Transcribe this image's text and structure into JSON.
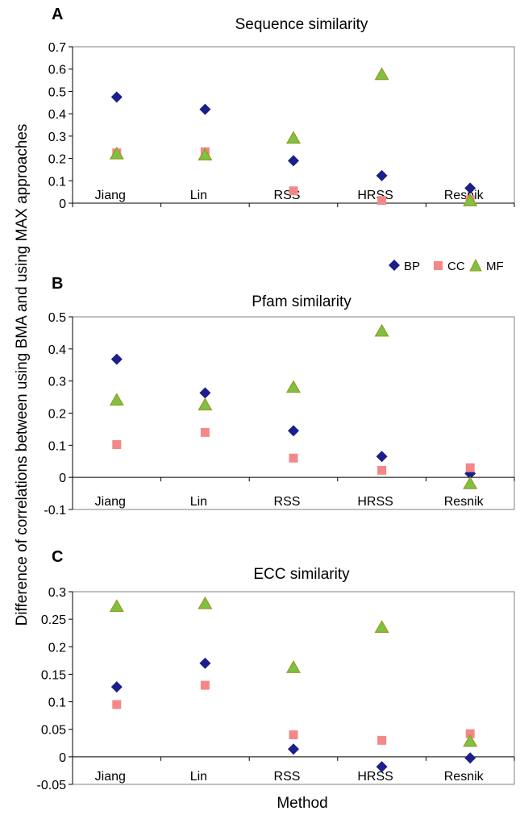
{
  "figure": {
    "ylabel": "Difference of correlations between using BMA and using MAX approaches",
    "xlabel": "Method"
  },
  "legend": {
    "entries": [
      {
        "name": "BP",
        "color": "#1a1f8a",
        "marker": "diamond"
      },
      {
        "name": "CC",
        "color": "#f48888",
        "marker": "square"
      },
      {
        "name": "MF",
        "color": "#7dc242",
        "marker": "triangle",
        "edge": "#9a9a20"
      }
    ]
  },
  "chart_data": [
    {
      "type": "scatter",
      "panel": "A",
      "title": "Sequence similarity",
      "categories": [
        "Jiang",
        "Lin",
        "RSS",
        "HRSS",
        "Resnik"
      ],
      "ylim": [
        0,
        0.7
      ],
      "yticks": [
        "0",
        "0.1",
        "0.2",
        "0.3",
        "0.4",
        "0.5",
        "0.6",
        "0.7"
      ],
      "ytick_values": [
        0,
        0.1,
        0.2,
        0.3,
        0.4,
        0.5,
        0.6,
        0.7
      ],
      "series": [
        {
          "name": "BP",
          "values": [
            0.475,
            0.42,
            0.19,
            0.123,
            0.067
          ]
        },
        {
          "name": "CC",
          "values": [
            0.225,
            0.23,
            0.055,
            0.012,
            0.015
          ]
        },
        {
          "name": "MF",
          "values": [
            0.22,
            0.215,
            0.29,
            0.575,
            0.01
          ]
        }
      ]
    },
    {
      "type": "scatter",
      "panel": "B",
      "title": "Pfam similarity",
      "categories": [
        "Jiang",
        "Lin",
        "RSS",
        "HRSS",
        "Resnik"
      ],
      "ylim": [
        -0.1,
        0.5
      ],
      "yticks": [
        "-0.1",
        "0",
        "0.1",
        "0.2",
        "0.3",
        "0.4",
        "0.5"
      ],
      "ytick_values": [
        -0.1,
        0,
        0.1,
        0.2,
        0.3,
        0.4,
        0.5
      ],
      "series": [
        {
          "name": "BP",
          "values": [
            0.368,
            0.263,
            0.145,
            0.065,
            0.012
          ]
        },
        {
          "name": "CC",
          "values": [
            0.102,
            0.14,
            0.06,
            0.022,
            0.03
          ]
        },
        {
          "name": "MF",
          "values": [
            0.24,
            0.225,
            0.28,
            0.455,
            -0.02
          ]
        }
      ]
    },
    {
      "type": "scatter",
      "panel": "C",
      "title": "ECC similarity",
      "categories": [
        "Jiang",
        "Lin",
        "RSS",
        "HRSS",
        "Resnik"
      ],
      "ylim": [
        -0.05,
        0.3
      ],
      "yticks": [
        "-0.05",
        "0",
        "0.05",
        "0.1",
        "0.15",
        "0.2",
        "0.25",
        "0.3"
      ],
      "ytick_values": [
        -0.05,
        0,
        0.05,
        0.1,
        0.15,
        0.2,
        0.25,
        0.3
      ],
      "series": [
        {
          "name": "BP",
          "values": [
            0.127,
            0.17,
            0.014,
            -0.018,
            -0.002
          ]
        },
        {
          "name": "CC",
          "values": [
            0.095,
            0.13,
            0.04,
            0.03,
            0.042
          ]
        },
        {
          "name": "MF",
          "values": [
            0.273,
            0.278,
            0.162,
            0.235,
            0.028
          ]
        }
      ]
    }
  ]
}
